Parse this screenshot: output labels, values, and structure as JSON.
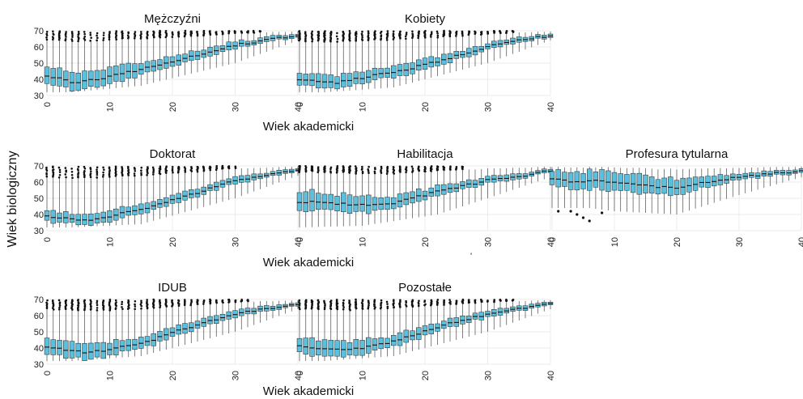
{
  "colors": {
    "box_fill": "#5bc0de",
    "box_stroke": "#2f2f2f",
    "outlier": "#111111",
    "grid": "#e4e4e4",
    "background": "#ffffff"
  },
  "y_axis_label": "Wiek biologiczny",
  "x_axis_label": "Wiek akademicki",
  "stray_mark": "'",
  "chart_data": [
    {
      "type": "boxplot",
      "title": "Mężczyźni",
      "xlabel": "",
      "ylabel": "",
      "xlim": [
        0,
        40
      ],
      "ylim": [
        30,
        70
      ],
      "xticks": [
        0,
        10,
        20,
        30,
        40
      ],
      "yticks": [
        30,
        40,
        50,
        60,
        70
      ],
      "grid": true,
      "median_anchors": [
        [
          0,
          42
        ],
        [
          2,
          41
        ],
        [
          4,
          38
        ],
        [
          8,
          40
        ],
        [
          15,
          46
        ],
        [
          22,
          53
        ],
        [
          30,
          61
        ],
        [
          36,
          65
        ],
        [
          40,
          67
        ]
      ],
      "box_half_height_anchors": [
        [
          0,
          5
        ],
        [
          4,
          6
        ],
        [
          15,
          4
        ],
        [
          30,
          2
        ],
        [
          40,
          1
        ]
      ],
      "whisker_low_anchors": [
        [
          0,
          32
        ],
        [
          4,
          32
        ],
        [
          15,
          36
        ],
        [
          30,
          50
        ],
        [
          40,
          64
        ]
      ],
      "outliers_from": 0,
      "outliers_to": 34
    },
    {
      "type": "boxplot",
      "title": "Kobiety",
      "xlabel": "",
      "ylabel": "",
      "xlim": [
        0,
        40
      ],
      "ylim": [
        30,
        70
      ],
      "xticks": [
        0,
        10,
        20,
        30,
        40
      ],
      "yticks": [
        30,
        40,
        50,
        60,
        70
      ],
      "grid": true,
      "median_anchors": [
        [
          0,
          40
        ],
        [
          3,
          39
        ],
        [
          6,
          38
        ],
        [
          10,
          41
        ],
        [
          16,
          45
        ],
        [
          22,
          51
        ],
        [
          30,
          60
        ],
        [
          36,
          65
        ],
        [
          40,
          67
        ]
      ],
      "box_half_height_anchors": [
        [
          0,
          4
        ],
        [
          4,
          4
        ],
        [
          15,
          3.5
        ],
        [
          30,
          2
        ],
        [
          40,
          1
        ]
      ],
      "whisker_low_anchors": [
        [
          0,
          32
        ],
        [
          4,
          32
        ],
        [
          15,
          35
        ],
        [
          30,
          50
        ],
        [
          40,
          64
        ]
      ],
      "outliers_from": 0,
      "outliers_to": 34
    },
    {
      "type": "boxplot",
      "title": "Doktorat",
      "xlabel": "",
      "ylabel": "",
      "xlim": [
        0,
        40
      ],
      "ylim": [
        30,
        70
      ],
      "xticks": [
        0,
        10,
        20,
        30,
        40
      ],
      "yticks": [
        30,
        40,
        50,
        60,
        70
      ],
      "grid": true,
      "median_anchors": [
        [
          0,
          39
        ],
        [
          3,
          38
        ],
        [
          5,
          36
        ],
        [
          9,
          38
        ],
        [
          15,
          43
        ],
        [
          22,
          51
        ],
        [
          30,
          61
        ],
        [
          36,
          65
        ],
        [
          40,
          67
        ]
      ],
      "box_half_height_anchors": [
        [
          0,
          3.5
        ],
        [
          4,
          3
        ],
        [
          15,
          3
        ],
        [
          30,
          2
        ],
        [
          40,
          1
        ]
      ],
      "whisker_low_anchors": [
        [
          0,
          32
        ],
        [
          4,
          32
        ],
        [
          15,
          34
        ],
        [
          30,
          50
        ],
        [
          40,
          64
        ]
      ],
      "outliers_from": 0,
      "outliers_to": 30
    },
    {
      "type": "boxplot",
      "title": "Habilitacja",
      "xlabel": "",
      "ylabel": "",
      "xlim": [
        0,
        40
      ],
      "ylim": [
        30,
        70
      ],
      "xticks": [
        0,
        10,
        20,
        30,
        40
      ],
      "yticks": [
        30,
        40,
        50,
        60,
        70
      ],
      "grid": true,
      "median_anchors": [
        [
          0,
          48
        ],
        [
          5,
          47
        ],
        [
          10,
          46
        ],
        [
          15,
          47
        ],
        [
          22,
          54
        ],
        [
          30,
          61
        ],
        [
          36,
          64
        ],
        [
          40,
          67
        ]
      ],
      "box_half_height_anchors": [
        [
          0,
          6
        ],
        [
          10,
          5
        ],
        [
          22,
          3
        ],
        [
          30,
          2
        ],
        [
          40,
          1
        ]
      ],
      "whisker_low_anchors": [
        [
          0,
          32
        ],
        [
          10,
          33
        ],
        [
          22,
          40
        ],
        [
          30,
          50
        ],
        [
          40,
          63
        ]
      ],
      "outliers_from": 0,
      "outliers_to": 26
    },
    {
      "type": "boxplot",
      "title": "Profesura tytularna",
      "xlabel": "",
      "ylabel": "",
      "xlim": [
        0,
        40
      ],
      "ylim": [
        30,
        70
      ],
      "xticks": [
        0,
        10,
        20,
        30,
        40
      ],
      "yticks": [
        30,
        40,
        50,
        60,
        70
      ],
      "grid": true,
      "median_anchors": [
        [
          0,
          62
        ],
        [
          3,
          60
        ],
        [
          6,
          61
        ],
        [
          10,
          60
        ],
        [
          15,
          58
        ],
        [
          20,
          56
        ],
        [
          25,
          60
        ],
        [
          30,
          63
        ],
        [
          35,
          65
        ],
        [
          40,
          67
        ]
      ],
      "box_half_height_anchors": [
        [
          0,
          5
        ],
        [
          10,
          6
        ],
        [
          20,
          5
        ],
        [
          30,
          2
        ],
        [
          40,
          1
        ]
      ],
      "whisker_low_anchors": [
        [
          0,
          44
        ],
        [
          6,
          44
        ],
        [
          10,
          42
        ],
        [
          20,
          40
        ],
        [
          30,
          52
        ],
        [
          40,
          63
        ]
      ],
      "outliers_from": 0,
      "outliers_to": 0,
      "low_outliers": [
        [
          1,
          42
        ],
        [
          3,
          42
        ],
        [
          4,
          40
        ],
        [
          5,
          38
        ],
        [
          6,
          36
        ],
        [
          8,
          41
        ]
      ]
    },
    {
      "type": "boxplot",
      "title": "IDUB",
      "xlabel": "",
      "ylabel": "",
      "xlim": [
        0,
        40
      ],
      "ylim": [
        30,
        70
      ],
      "xticks": [
        0,
        10,
        20,
        30,
        40
      ],
      "yticks": [
        30,
        40,
        50,
        60,
        70
      ],
      "grid": true,
      "median_anchors": [
        [
          0,
          40
        ],
        [
          3,
          39
        ],
        [
          6,
          37
        ],
        [
          10,
          39
        ],
        [
          16,
          44
        ],
        [
          22,
          52
        ],
        [
          30,
          61
        ],
        [
          36,
          65
        ],
        [
          40,
          67
        ]
      ],
      "box_half_height_anchors": [
        [
          0,
          5
        ],
        [
          4,
          5
        ],
        [
          15,
          3.5
        ],
        [
          30,
          2
        ],
        [
          40,
          1
        ]
      ],
      "whisker_low_anchors": [
        [
          0,
          32
        ],
        [
          4,
          32
        ],
        [
          15,
          35
        ],
        [
          30,
          50
        ],
        [
          40,
          64
        ]
      ],
      "outliers_from": 0,
      "outliers_to": 32
    },
    {
      "type": "boxplot",
      "title": "Pozostałe",
      "xlabel": "",
      "ylabel": "",
      "xlim": [
        0,
        40
      ],
      "ylim": [
        30,
        70
      ],
      "xticks": [
        0,
        10,
        20,
        30,
        40
      ],
      "yticks": [
        30,
        40,
        50,
        60,
        70
      ],
      "grid": true,
      "median_anchors": [
        [
          0,
          41
        ],
        [
          3,
          40
        ],
        [
          6,
          39
        ],
        [
          10,
          40
        ],
        [
          16,
          45
        ],
        [
          22,
          53
        ],
        [
          30,
          61
        ],
        [
          36,
          65
        ],
        [
          40,
          67
        ]
      ],
      "box_half_height_anchors": [
        [
          0,
          5
        ],
        [
          4,
          5
        ],
        [
          15,
          3.5
        ],
        [
          30,
          2
        ],
        [
          40,
          1
        ]
      ],
      "whisker_low_anchors": [
        [
          0,
          32
        ],
        [
          4,
          32
        ],
        [
          15,
          35
        ],
        [
          30,
          50
        ],
        [
          40,
          64
        ]
      ],
      "outliers_from": 0,
      "outliers_to": 34
    }
  ]
}
